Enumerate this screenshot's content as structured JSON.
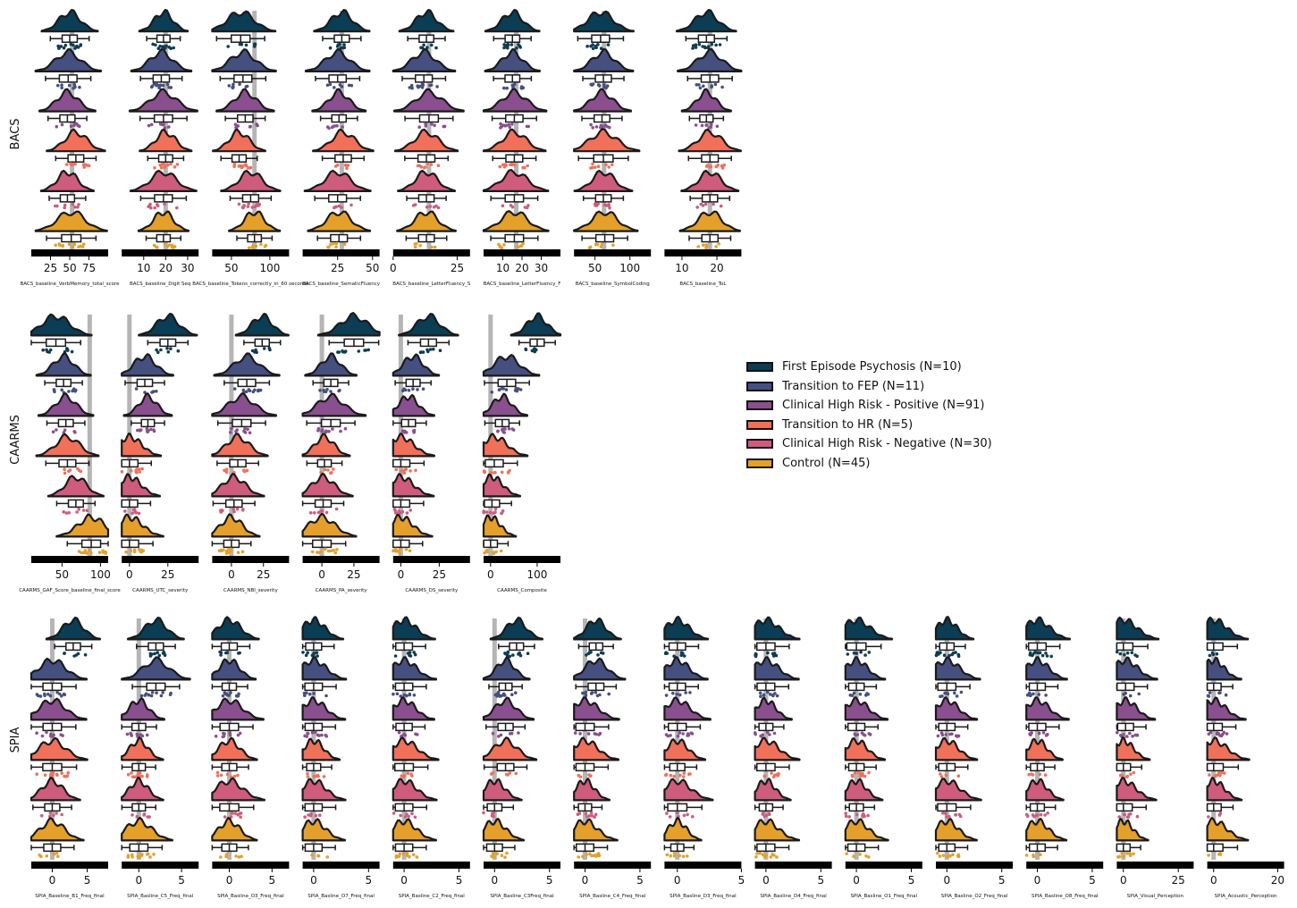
{
  "groups": [
    {
      "label": "First Episode Psychosis (N=10)",
      "color": "#0b3d55"
    },
    {
      "label": "Transition to FEP (N=11)",
      "color": "#454f80"
    },
    {
      "label": "Clinical High Risk - Positive (N=91)",
      "color": "#8a4f8e"
    },
    {
      "label": "Transition to HR (N=5)",
      "color": "#f0705a"
    },
    {
      "label": "Clinical High Risk - Negative (N=30)",
      "color": "#cf5c7c"
    },
    {
      "label": "Control (N=45)",
      "color": "#e4a02a"
    }
  ],
  "chart_data": {
    "type": "raincloud",
    "rows": [
      {
        "ylabel": "BACS",
        "panels": [
          {
            "xlabel": "BACS_baseline_VerbMemory_total_score",
            "xlim": [
              0,
              100
            ],
            "ticks": [
              25,
              50,
              75
            ],
            "ref": 53,
            "medians": [
              50,
              48,
              47,
              58,
              47,
              52
            ]
          },
          {
            "xlabel": "BACS_baseline_Digit Seq",
            "xlim": [
              0,
              35
            ],
            "ticks": [
              10,
              20,
              30
            ],
            "ref": 20,
            "medians": [
              19,
              18,
              19,
              20,
              19,
              19
            ]
          },
          {
            "xlabel": "BACS_baseline_Tokens_correctly_in_60 seconds",
            "xlim": [
              25,
              125
            ],
            "ticks": [
              50,
              100
            ],
            "ref": 80,
            "medians": [
              62,
              65,
              68,
              60,
              75,
              80
            ]
          },
          {
            "xlabel": "BACS_baseline_SematicFluency",
            "xlim": [
              0,
              55
            ],
            "ticks": [
              25,
              50
            ],
            "ref": 28,
            "medians": [
              28,
              25,
              26,
              29,
              25,
              26
            ]
          },
          {
            "xlabel": "BACS_baseline_LetterFluency_S",
            "xlim": [
              0,
              30
            ],
            "ticks": [
              0,
              25
            ],
            "ref": 14,
            "medians": [
              13,
              12,
              14,
              13,
              13,
              13
            ]
          },
          {
            "xlabel": "BACS_baseline_LetterFluency_F",
            "xlim": [
              0,
              40
            ],
            "ticks": [
              10,
              20,
              30
            ],
            "ref": 17,
            "medians": [
              15,
              15,
              16,
              16,
              16,
              16
            ]
          },
          {
            "xlabel": "BACS_baseline_SymbolCoding",
            "xlim": [
              20,
              130
            ],
            "ticks": [
              50,
              100
            ],
            "ref": 63,
            "medians": [
              58,
              62,
              60,
              62,
              62,
              64
            ]
          },
          {
            "xlabel": "BACS_baseline_ToL",
            "xlim": [
              5,
              27
            ],
            "ticks": [
              10,
              20
            ],
            "ref": 18,
            "medians": [
              17,
              18,
              17,
              18,
              18,
              18
            ]
          }
        ]
      },
      {
        "ylabel": "CAARMS",
        "panels": [
          {
            "xlabel": "CAARMS_GAF_Score_baseline_final_score",
            "xlim": [
              10,
              110
            ],
            "ticks": [
              50,
              100
            ],
            "ref": 86,
            "medians": [
              42,
              52,
              55,
              57,
              68,
              88
            ]
          },
          {
            "xlabel": "CAARMS_UTC_severity",
            "xlim": [
              -5,
              45
            ],
            "ticks": [
              0,
              25
            ],
            "ref": 0,
            "medians": [
              25,
              10,
              12,
              0,
              0,
              0
            ]
          },
          {
            "xlabel": "CAARMS_NBI_severity",
            "xlim": [
              -15,
              45
            ],
            "ticks": [
              0,
              25
            ],
            "ref": 0,
            "medians": [
              24,
              12,
              8,
              5,
              2,
              0
            ]
          },
          {
            "xlabel": "CAARMS_PA_severity",
            "xlim": [
              -15,
              45
            ],
            "ticks": [
              0,
              25
            ],
            "ref": 0,
            "medians": [
              25,
              7,
              7,
              2,
              1,
              0
            ]
          },
          {
            "xlabel": "CAARMS_DS_severity",
            "xlim": [
              -5,
              45
            ],
            "ticks": [
              0,
              25
            ],
            "ref": 0,
            "medians": [
              18,
              8,
              5,
              0,
              0,
              0
            ]
          },
          {
            "xlabel": "CAARMS_Composite",
            "xlim": [
              -15,
              150
            ],
            "ticks": [
              0,
              100
            ],
            "ref": 0,
            "medians": [
              100,
              35,
              25,
              8,
              3,
              0
            ]
          }
        ]
      },
      {
        "ylabel": "SPIA",
        "panels": [
          {
            "xlabel": "SPIA_Baseline_B1_Freq_final",
            "xlim": [
              -3,
              8
            ],
            "ticks": [
              0,
              5
            ],
            "ref": 0,
            "medians": [
              3,
              0,
              0,
              0,
              0,
              0
            ]
          },
          {
            "xlabel": "SPIA_Basline_C5_Freq_final",
            "xlim": [
              -2,
              7
            ],
            "ticks": [
              0,
              5
            ],
            "ref": 0,
            "medians": [
              2,
              2,
              0,
              0,
              0,
              0
            ]
          },
          {
            "xlabel": "SPIA_Basline_O3_Freq_final",
            "xlim": [
              -2,
              7
            ],
            "ticks": [
              0,
              5
            ],
            "ref": 0,
            "medians": [
              0,
              0,
              0,
              0,
              0,
              0
            ]
          },
          {
            "xlabel": "SPIA_Basline_O7_Freq_final",
            "xlim": [
              -1,
              6
            ],
            "ticks": [
              0,
              5
            ],
            "ref": 0,
            "medians": [
              0,
              0,
              0,
              0,
              0,
              0
            ]
          },
          {
            "xlabel": "SPIA_Basline_C2_Freq_final",
            "xlim": [
              -1,
              6
            ],
            "ticks": [
              0,
              5
            ],
            "ref": 0,
            "medians": [
              0,
              0,
              0,
              0,
              0,
              0
            ]
          },
          {
            "xlabel": "SPIA_Basline_C3Freq_final",
            "xlim": [
              -1,
              6
            ],
            "ticks": [
              0,
              5
            ],
            "ref": 0,
            "medians": [
              2,
              1,
              1,
              1,
              0,
              0
            ]
          },
          {
            "xlabel": "SPIA_Basline_C4_Freq_final",
            "xlim": [
              -1,
              6
            ],
            "ticks": [
              0,
              5
            ],
            "ref": 0,
            "medians": [
              1,
              1,
              0,
              0,
              0,
              0
            ]
          },
          {
            "xlabel": "SPIA_Basline_D3_Freq_final",
            "xlim": [
              -1,
              5
            ],
            "ticks": [
              0,
              5
            ],
            "ref": 0,
            "medians": [
              0,
              0,
              0,
              0,
              0,
              0
            ]
          },
          {
            "xlabel": "SPIA_Basline_D4_Freq_final",
            "xlim": [
              -1,
              6
            ],
            "ticks": [
              0,
              5
            ],
            "ref": 0,
            "medians": [
              0,
              0,
              0,
              0,
              0,
              0
            ]
          },
          {
            "xlabel": "SPIA_Basline_O1_Freq_final",
            "xlim": [
              -1,
              6
            ],
            "ticks": [
              0,
              5
            ],
            "ref": 0,
            "medians": [
              0,
              0,
              0,
              0,
              0,
              0
            ]
          },
          {
            "xlabel": "SPIA_Basline_O2_Freq_final",
            "xlim": [
              -1,
              6
            ],
            "ticks": [
              0,
              5
            ],
            "ref": 0,
            "medians": [
              0,
              0,
              0,
              0,
              0,
              0
            ]
          },
          {
            "xlabel": "SPIA_Basline_O8_Freq_final",
            "xlim": [
              -1,
              6
            ],
            "ticks": [
              0,
              5
            ],
            "ref": 0,
            "medians": [
              0,
              0,
              0,
              0,
              0,
              0
            ]
          },
          {
            "xlabel": "SPIA_Visual_Perception",
            "xlim": [
              -3,
              32
            ],
            "ticks": [
              0,
              25
            ],
            "ref": 0,
            "medians": [
              0,
              1,
              1,
              0,
              0,
              0
            ]
          },
          {
            "xlabel": "SPIA_Acoustic_Perception",
            "xlim": [
              -2,
              22
            ],
            "ticks": [
              0,
              20
            ],
            "ref": 0,
            "medians": [
              0,
              0,
              0,
              0,
              0,
              0
            ]
          }
        ]
      }
    ]
  }
}
